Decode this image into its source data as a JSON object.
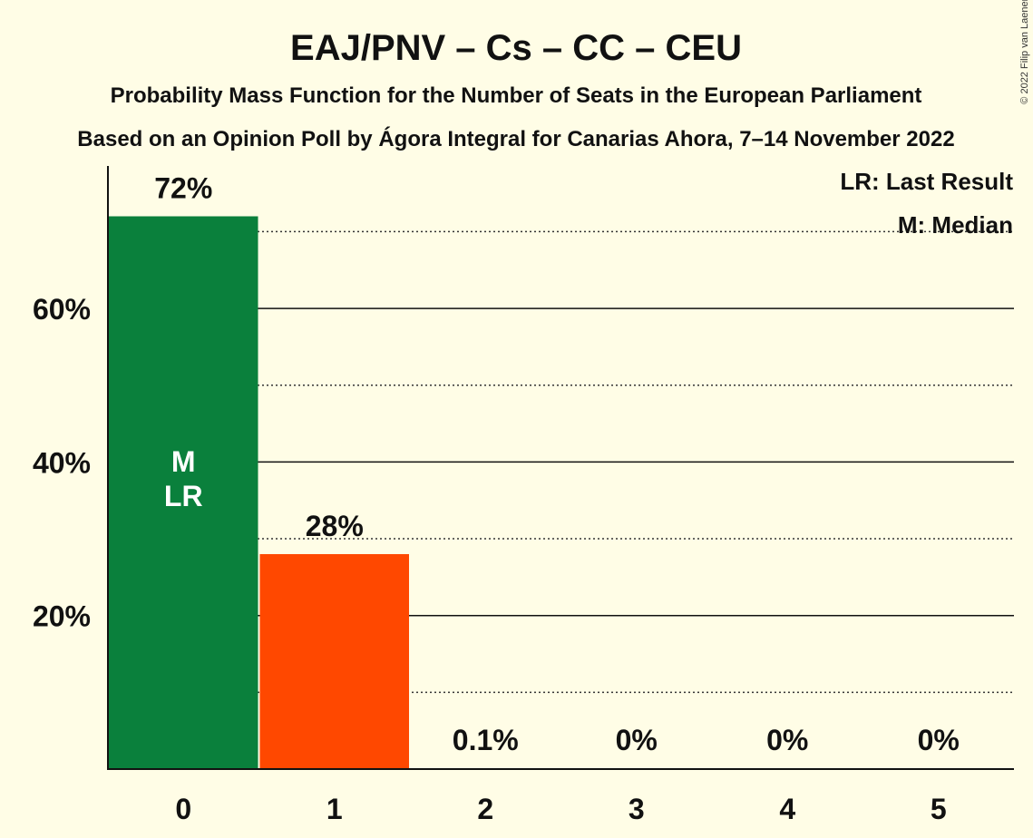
{
  "chart_data": {
    "type": "bar",
    "title": "EAJ/PNV – Cs – CC – CEU",
    "subtitle": "Probability Mass Function for the Number of Seats in the European Parliament",
    "subtitle2": "Based on an Opinion Poll by Ágora Integral for Canarias Ahora, 7–14 November 2022",
    "categories": [
      "0",
      "1",
      "2",
      "3",
      "4",
      "5"
    ],
    "values": [
      72,
      28,
      0.1,
      0,
      0,
      0
    ],
    "value_labels": [
      "72%",
      "28%",
      "0.1%",
      "0%",
      "0%",
      "0%"
    ],
    "bar_colors": [
      "#0a803c",
      "#ff4800",
      "#0a803c",
      "#0a803c",
      "#0a803c",
      "#0a803c"
    ],
    "ylim": [
      0,
      78
    ],
    "yticks": [
      20,
      40,
      60
    ],
    "ytick_labels": [
      "20%",
      "40%",
      "60%"
    ],
    "minor_gridlines": [
      10,
      30,
      50,
      70
    ],
    "grid": true,
    "bar_markers": {
      "category": "0",
      "lines": [
        "M",
        "LR"
      ]
    },
    "legend": {
      "placement": "top-right",
      "entries": [
        "LR: Last Result",
        "M: Median"
      ]
    },
    "copyright": "© 2022 Filip van Laenen"
  }
}
